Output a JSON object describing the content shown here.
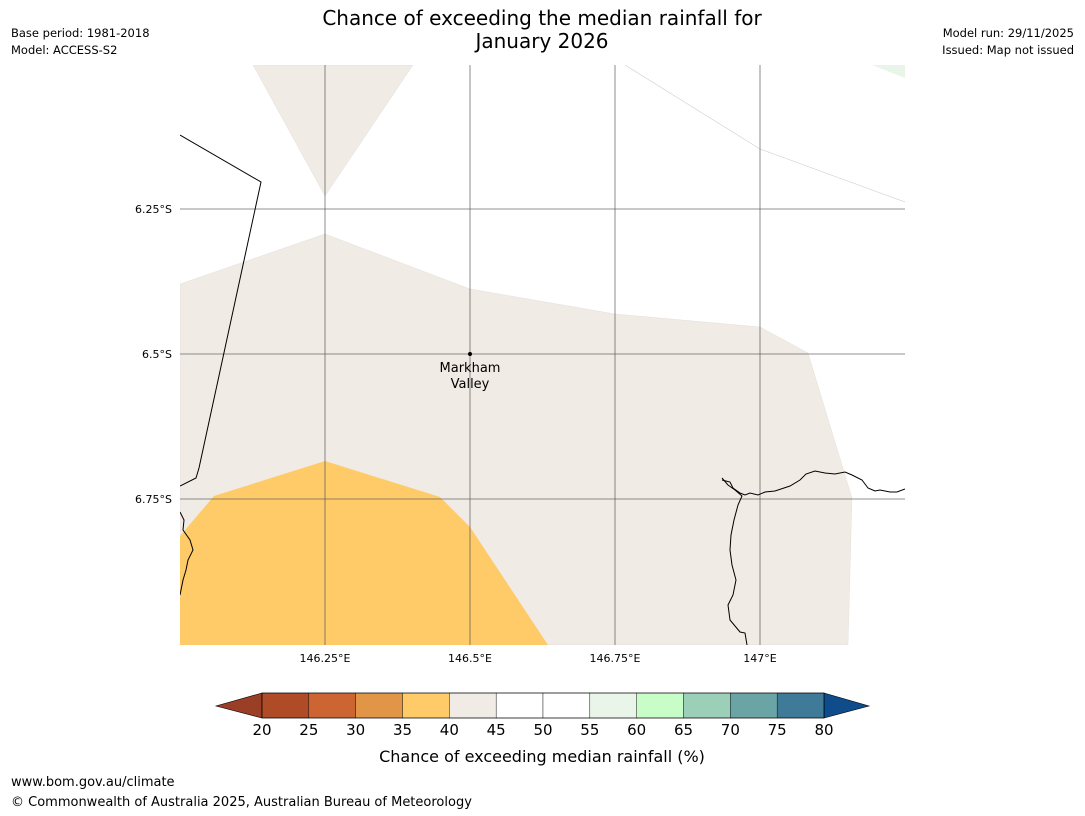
{
  "header": {
    "title_line1": "Chance of exceeding the median rainfall for",
    "title_line2": "January 2026",
    "base_period": "Base period: 1981-2018",
    "model": "Model: ACCESS-S2",
    "model_run": "Model run: 29/11/2025",
    "issued": "Issued: Map not issued"
  },
  "map": {
    "lat_labels": [
      "6.25°S",
      "6.5°S",
      "6.75°S"
    ],
    "lon_labels": [
      "146.25°E",
      "146.5°E",
      "146.75°E",
      "147°E"
    ],
    "place": {
      "name_line1": "Markham",
      "name_line2": "Valley"
    },
    "colors": {
      "band_35_40": "#fecb68",
      "band_40_45": "#f0ebe5",
      "band_60_65": "#e9f5e8",
      "gridline": "#555555",
      "coastline": "#000000"
    }
  },
  "colorbar": {
    "ticks": [
      "20",
      "25",
      "30",
      "35",
      "40",
      "45",
      "50",
      "55",
      "60",
      "65",
      "70",
      "75",
      "80"
    ],
    "label": "Chance of exceeding median rainfall (%)",
    "under_color": "#9b3e26",
    "over_color": "#0e4c8c",
    "colors": [
      "#b04b28",
      "#cd6532",
      "#e19546",
      "#fecb68",
      "#f0ebe5",
      "#ffffff",
      "#ffffff",
      "#e9f5e8",
      "#c8fdc8",
      "#9ccfb7",
      "#6ba4a4",
      "#3f7a99"
    ]
  },
  "footer": {
    "url": "www.bom.gov.au/climate",
    "copyright": "© Commonwealth of Australia 2025, Australian Bureau of Meteorology"
  }
}
